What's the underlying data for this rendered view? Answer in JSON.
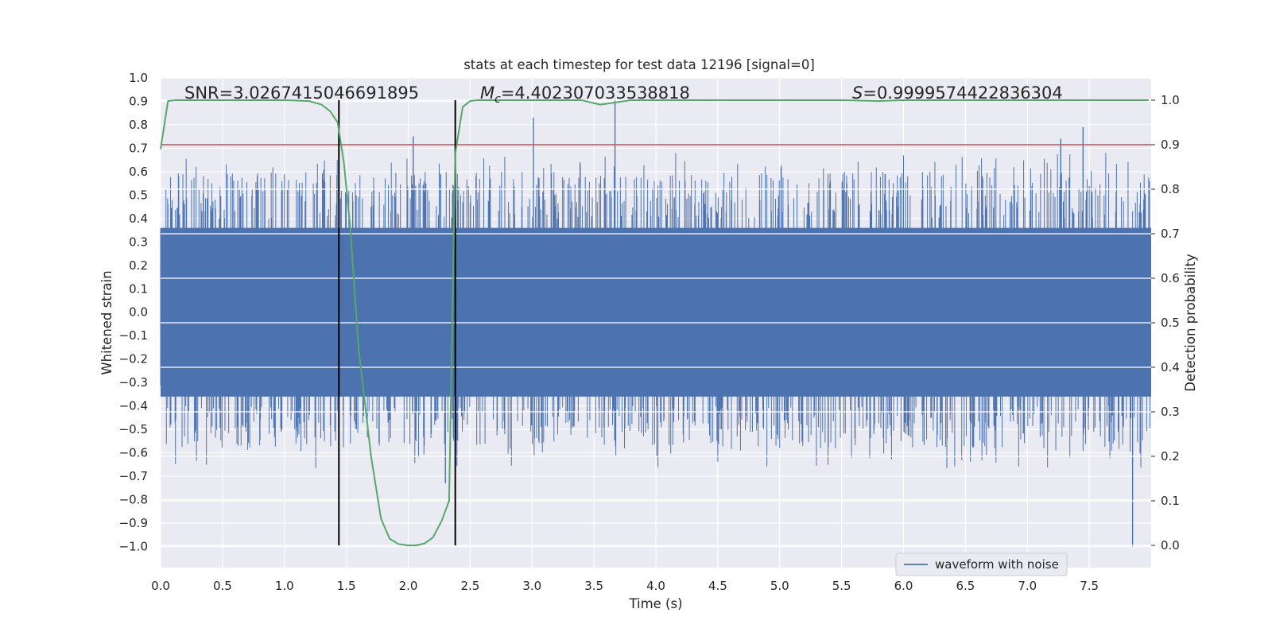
{
  "chart_data": {
    "type": "line",
    "title": "stats at each timestep for test data 12196 [signal=0]",
    "xlabel": "Time (s)",
    "ylabel_left": "Whitened strain",
    "ylabel_right": "Detection probability",
    "xlim": [
      0.0,
      8.0
    ],
    "ylim_left": [
      -1.09,
      1.0
    ],
    "ylim_right": [
      -0.05,
      1.05
    ],
    "x_ticks": [
      "0.0",
      "0.5",
      "1.0",
      "1.5",
      "2.0",
      "2.5",
      "3.0",
      "3.5",
      "4.0",
      "4.5",
      "5.0",
      "5.5",
      "6.0",
      "6.5",
      "7.0",
      "7.5"
    ],
    "y_left_ticks": [
      "1.0",
      "0.9",
      "0.8",
      "0.7",
      "0.6",
      "0.5",
      "0.4",
      "0.3",
      "0.2",
      "0.1",
      "0.0",
      "−0.1",
      "−0.2",
      "−0.3",
      "−0.4",
      "−0.5",
      "−0.6",
      "−0.7",
      "−0.8",
      "−0.9",
      "−1.0"
    ],
    "y_right_ticks": [
      "1.0",
      "0.9",
      "0.8",
      "0.7",
      "0.6",
      "0.5",
      "0.4",
      "0.3",
      "0.2",
      "0.1",
      "0.0"
    ],
    "grid": true,
    "colors": {
      "waveform": "#4c72b0",
      "probability": "#55a868",
      "threshold": "#c44e52",
      "boundary": "#000000",
      "background": "#eaeaf2"
    },
    "annotations": [
      {
        "text": "SNR=3.0267415046691895"
      },
      {
        "prefix": "M",
        "sub": "c",
        "text": "=4.402307033538818"
      },
      {
        "prefix": "S",
        "text": "=0.9999574422836304"
      }
    ],
    "threshold_probability": 0.9,
    "boundaries_x": [
      1.44,
      2.38
    ],
    "series": [
      {
        "name": "waveform with noise",
        "axis": "left",
        "kind": "noise_envelope",
        "duration_s": 8.0,
        "core_band": [
          -0.36,
          0.36
        ],
        "typical_peak_range": [
          0.4,
          0.6
        ],
        "notable_peaks": [
          {
            "x": 3.01,
            "y": 0.83
          },
          {
            "x": 3.67,
            "y": 0.91
          },
          {
            "x": 7.27,
            "y": 0.74
          },
          {
            "x": 7.45,
            "y": 0.79
          },
          {
            "x": 7.85,
            "y": -1.0
          },
          {
            "x": 2.04,
            "y": 0.75
          },
          {
            "x": 2.3,
            "y": -0.73
          }
        ]
      },
      {
        "name": "detection probability",
        "axis": "right",
        "x": [
          0.0,
          0.06,
          0.12,
          0.5,
          1.0,
          1.2,
          1.3,
          1.37,
          1.43,
          1.48,
          1.53,
          1.6,
          1.7,
          1.78,
          1.85,
          1.92,
          2.0,
          2.06,
          2.13,
          2.2,
          2.27,
          2.33,
          2.38,
          2.44,
          2.5,
          2.56,
          3.0,
          3.4,
          3.55,
          3.65,
          3.8,
          4.0,
          5.0,
          5.5,
          5.8,
          6.0,
          7.0,
          7.98
        ],
        "y": [
          0.89,
          0.998,
          1.0,
          1.0,
          1.0,
          0.998,
          0.99,
          0.975,
          0.95,
          0.86,
          0.72,
          0.44,
          0.2,
          0.06,
          0.015,
          0.003,
          0.0,
          0.0,
          0.004,
          0.018,
          0.055,
          0.1,
          0.88,
          0.985,
          0.998,
          1.0,
          1.0,
          1.0,
          0.99,
          0.994,
          1.0,
          1.0,
          1.0,
          1.0,
          0.998,
          1.0,
          1.0,
          1.0
        ]
      }
    ],
    "legend": {
      "entries": [
        "waveform with noise"
      ],
      "placement": "lower-right"
    }
  }
}
